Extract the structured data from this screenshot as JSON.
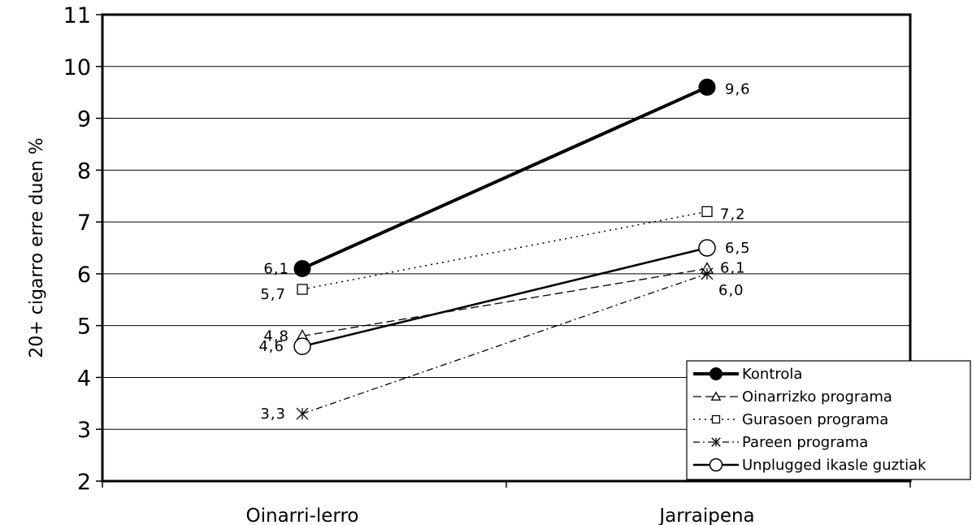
{
  "chart_data": {
    "type": "line",
    "ylabel": "20+ cigarro erre duen %",
    "xlabel": "",
    "ylim": [
      2,
      11
    ],
    "yticks": [
      2,
      3,
      4,
      5,
      6,
      7,
      8,
      9,
      10,
      11
    ],
    "categories": [
      "Oinarri-lerro",
      "Jarraipena"
    ],
    "grid": true,
    "legend_position": "bottom-right",
    "series": [
      {
        "name": "Kontrola",
        "marker": "filled-circle",
        "line": "solid-thick",
        "values": [
          6.1,
          9.6
        ],
        "labels": [
          "6,1",
          "9,6"
        ]
      },
      {
        "name": "Oinarrizko programa",
        "marker": "triangle",
        "line": "dashed",
        "values": [
          4.8,
          6.1
        ],
        "labels": [
          "4,8",
          "6,1"
        ]
      },
      {
        "name": "Gurasoen programa",
        "marker": "square",
        "line": "dotted",
        "values": [
          5.7,
          7.2
        ],
        "labels": [
          "5,7",
          "7,2"
        ]
      },
      {
        "name": "Pareen programa",
        "marker": "asterisk",
        "line": "dash-dot",
        "values": [
          3.3,
          6.0
        ],
        "labels": [
          "3,3",
          "6,0"
        ]
      },
      {
        "name": "Unplugged ikasle guztiak",
        "marker": "open-circle",
        "line": "solid",
        "values": [
          4.6,
          6.5
        ],
        "labels": [
          "4,6",
          "6,5"
        ]
      }
    ]
  }
}
